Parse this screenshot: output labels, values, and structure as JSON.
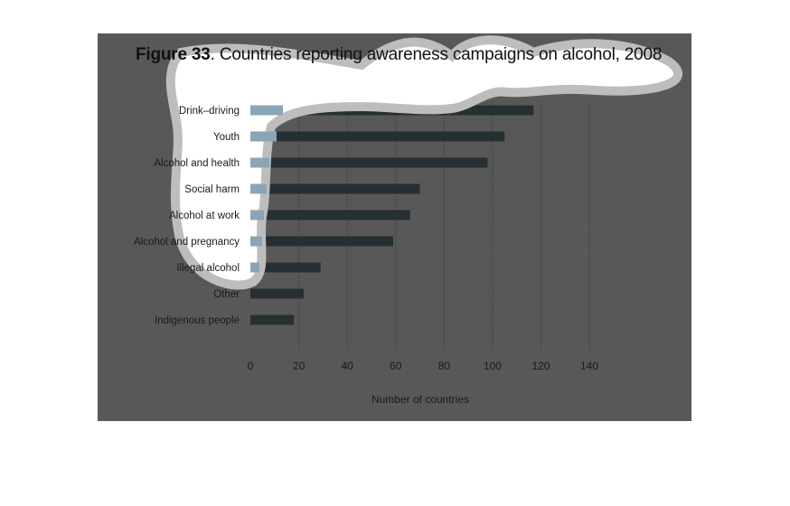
{
  "figure": {
    "number": "Figure 33",
    "caption": ". Countries reporting awareness campaigns on alcohol, 2008"
  },
  "colors": {
    "panel": "#585858",
    "bar": "#263033",
    "highlight_bar": "#8aa5b6",
    "blob": "#ffffff",
    "blob_outline": "#bdbdbd",
    "grid": "#2e2e2e"
  },
  "chart_data": {
    "type": "bar",
    "orientation": "horizontal",
    "title": "Countries reporting awareness campaigns on alcohol, 2008",
    "xlabel": "Number of countries",
    "ylabel": "",
    "xlim": [
      0,
      140
    ],
    "xticks": [
      0,
      20,
      40,
      60,
      80,
      100,
      120,
      140
    ],
    "grid": "vertical-dotted",
    "categories": [
      "Drink–driving",
      "Youth",
      "Alcohol and health",
      "Social harm",
      "Alcohol at work",
      "Alcohol and pregnancy",
      "Illegal alcohol",
      "Other",
      "Indigenous people"
    ],
    "values": [
      117,
      105,
      98,
      70,
      66,
      59,
      29,
      22,
      18
    ]
  }
}
